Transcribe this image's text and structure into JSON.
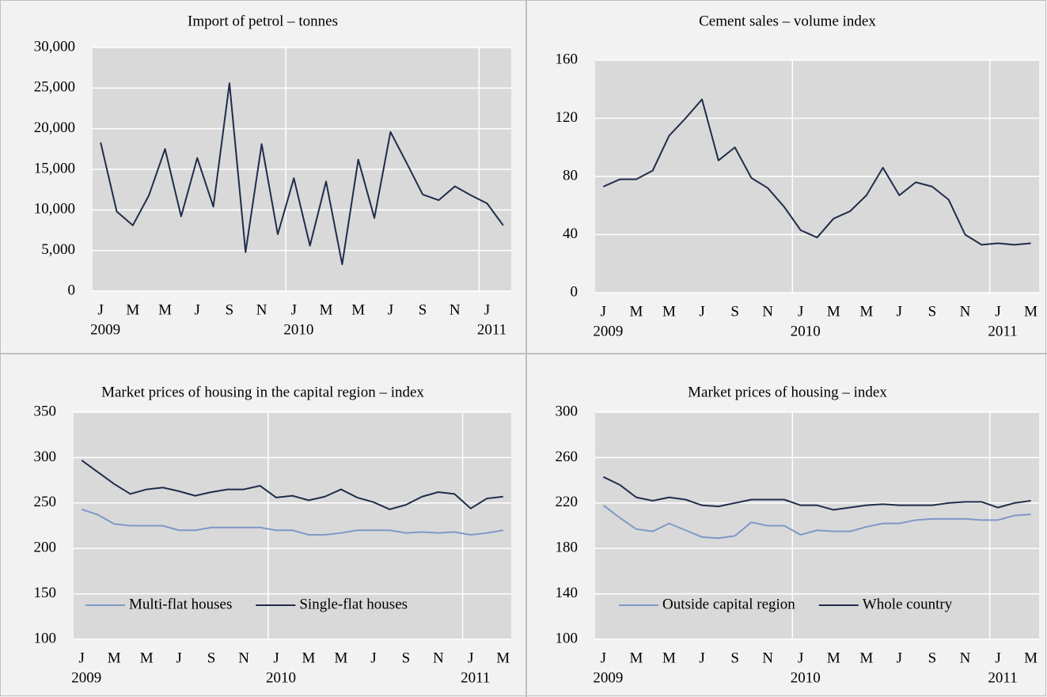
{
  "chart_data": [
    {
      "type": "line",
      "title": "Import of petrol – tonnes",
      "categories": [
        "J",
        null,
        "M",
        null,
        "M",
        null,
        "J",
        null,
        "S",
        null,
        "N",
        null,
        "J",
        null,
        "M",
        null,
        "M",
        null,
        "J",
        null,
        "S",
        null,
        "N",
        null,
        "J",
        null
      ],
      "year_labels": [
        "2009",
        null,
        null,
        null,
        null,
        null,
        null,
        null,
        null,
        null,
        null,
        null,
        "2010",
        null,
        null,
        null,
        null,
        null,
        null,
        null,
        null,
        null,
        null,
        null,
        "2011",
        null
      ],
      "values": [
        18300,
        9800,
        8100,
        11800,
        17500,
        9200,
        16400,
        10400,
        25600,
        4800,
        18100,
        7000,
        13900,
        5600,
        13500,
        3300,
        16200,
        9000,
        19600,
        15800,
        11900,
        11200,
        12900,
        11800,
        10800,
        8100
      ],
      "color": "#1f2d4a",
      "ylim": [
        0,
        30000
      ],
      "yticks": [
        0,
        {
          "value": 5000,
          "label": "5,000"
        },
        {
          "value": 10000,
          "label": "10,000"
        },
        {
          "value": 15000,
          "label": "15,000"
        },
        {
          "value": 20000,
          "label": "20,000"
        },
        {
          "value": 25000,
          "label": "25,000"
        },
        {
          "value": 30000,
          "label": "30,000"
        }
      ],
      "grid": true
    },
    {
      "type": "line",
      "title": "Cement sales – volume index",
      "categories": [
        "J",
        null,
        "M",
        null,
        "M",
        null,
        "J",
        null,
        "S",
        null,
        "N",
        null,
        "J",
        null,
        "M",
        null,
        "M",
        null,
        "J",
        null,
        "S",
        null,
        "N",
        null,
        "J",
        null,
        "M"
      ],
      "year_labels": [
        "2009",
        null,
        null,
        null,
        null,
        null,
        null,
        null,
        null,
        null,
        null,
        null,
        "2010",
        null,
        null,
        null,
        null,
        null,
        null,
        null,
        null,
        null,
        null,
        null,
        "2011",
        null,
        null
      ],
      "values": [
        73,
        78,
        78,
        84,
        108,
        120,
        133,
        91,
        100,
        79,
        72,
        59,
        43,
        38,
        51,
        56,
        67,
        86,
        67,
        76,
        73,
        64,
        40,
        33,
        34,
        33,
        34
      ],
      "color": "#1f2d4a",
      "ylim": [
        0,
        160
      ],
      "yticks": [
        0,
        40,
        80,
        120,
        160
      ],
      "grid": true
    },
    {
      "type": "line",
      "title": "Market prices of housing in the capital region – index",
      "categories": [
        "J",
        null,
        "M",
        null,
        "M",
        null,
        "J",
        null,
        "S",
        null,
        "N",
        null,
        "J",
        null,
        "M",
        null,
        "M",
        null,
        "J",
        null,
        "S",
        null,
        "N",
        null,
        "J",
        null,
        "M"
      ],
      "year_labels": [
        "2009",
        null,
        null,
        null,
        null,
        null,
        null,
        null,
        null,
        null,
        null,
        null,
        "2010",
        null,
        null,
        null,
        null,
        null,
        null,
        null,
        null,
        null,
        null,
        null,
        "2011",
        null,
        null
      ],
      "series": [
        {
          "name": "Multi-flat houses",
          "color": "#7f98c8",
          "values": [
            243,
            237,
            227,
            225,
            225,
            225,
            220,
            220,
            223,
            223,
            223,
            223,
            220,
            220,
            215,
            215,
            217,
            220,
            220,
            220,
            217,
            218,
            217,
            218,
            215,
            217,
            220
          ]
        },
        {
          "name": "Single-flat houses",
          "color": "#1f2d4a",
          "values": [
            297,
            284,
            271,
            260,
            265,
            267,
            263,
            258,
            262,
            265,
            265,
            269,
            256,
            258,
            253,
            257,
            265,
            256,
            251,
            243,
            248,
            257,
            262,
            260,
            244,
            255,
            257
          ]
        }
      ],
      "ylim": [
        100,
        350
      ],
      "yticks": [
        100,
        150,
        200,
        250,
        300,
        350
      ],
      "grid": true,
      "legend": "bottom"
    },
    {
      "type": "line",
      "title": "Market prices of housing – index",
      "categories": [
        "J",
        null,
        "M",
        null,
        "M",
        null,
        "J",
        null,
        "S",
        null,
        "N",
        null,
        "J",
        null,
        "M",
        null,
        "M",
        null,
        "J",
        null,
        "S",
        null,
        "N",
        null,
        "J",
        null,
        "M"
      ],
      "year_labels": [
        "2009",
        null,
        null,
        null,
        null,
        null,
        null,
        null,
        null,
        null,
        null,
        null,
        "2010",
        null,
        null,
        null,
        null,
        null,
        null,
        null,
        null,
        null,
        null,
        null,
        "2011",
        null,
        null
      ],
      "series": [
        {
          "name": "Outside capital region",
          "color": "#7f98c8",
          "values": [
            218,
            207,
            197,
            195,
            202,
            196,
            190,
            189,
            191,
            203,
            200,
            200,
            192,
            196,
            195,
            195,
            199,
            202,
            202,
            205,
            206,
            206,
            206,
            205,
            205,
            209,
            210
          ]
        },
        {
          "name": "Whole country",
          "color": "#1f2d4a",
          "values": [
            243,
            236,
            225,
            222,
            225,
            223,
            218,
            217,
            220,
            223,
            223,
            223,
            218,
            218,
            214,
            216,
            218,
            219,
            218,
            218,
            218,
            220,
            221,
            221,
            216,
            220,
            222
          ]
        }
      ],
      "ylim": [
        100,
        300
      ],
      "yticks": [
        100,
        140,
        180,
        220,
        260,
        300
      ],
      "grid": true,
      "legend": "bottom"
    }
  ]
}
